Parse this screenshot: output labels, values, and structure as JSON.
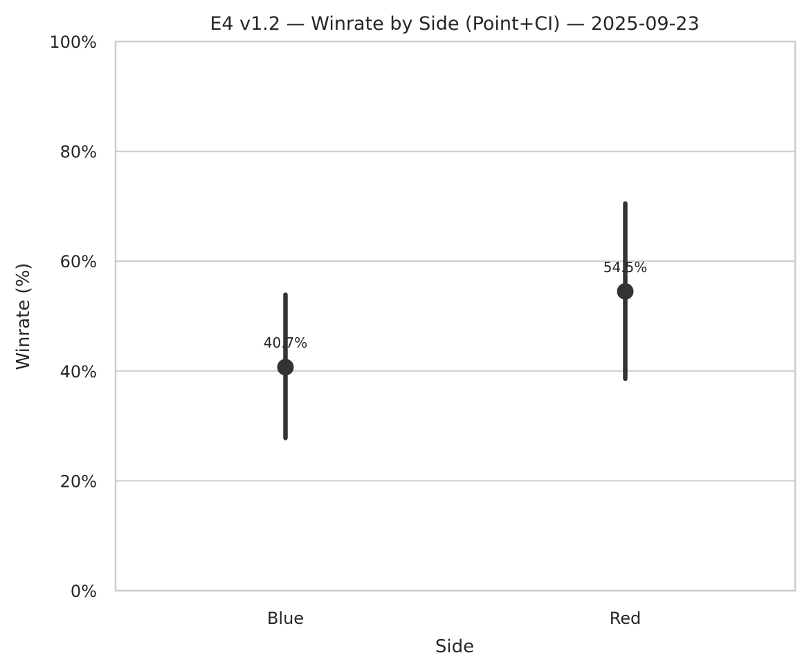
{
  "chart_data": {
    "type": "scatter",
    "title": "E4 v1.2 — Winrate by Side (Point+CI) — 2025-09-23",
    "xlabel": "Side",
    "ylabel": "Winrate (%)",
    "categories": [
      "Blue",
      "Red"
    ],
    "values": [
      40.7,
      54.5
    ],
    "ci_low": [
      27.8,
      38.6
    ],
    "ci_high": [
      53.9,
      70.5
    ],
    "data_labels": [
      "40.7%",
      "54.5%"
    ],
    "ylim": [
      0,
      100
    ],
    "yticks": [
      0,
      20,
      40,
      60,
      80,
      100
    ],
    "ytick_labels": [
      "0%",
      "20%",
      "40%",
      "60%",
      "80%",
      "100%"
    ],
    "grid": "horizontal",
    "legend": "none",
    "colors": {
      "point": "#333333",
      "grid": "#cccccc",
      "frame": "#cccccc",
      "text": "#262626",
      "background": "#ffffff"
    }
  }
}
